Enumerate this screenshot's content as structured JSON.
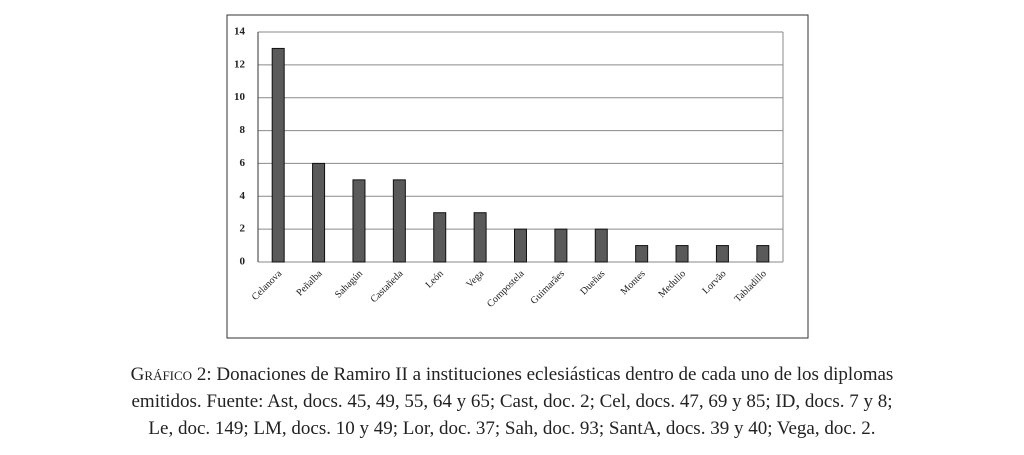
{
  "chart_data": {
    "type": "bar",
    "categories": [
      "Celanova",
      "Peñalba",
      "Sahagún",
      "Castañeda",
      "León",
      "Vega",
      "Compostela",
      "Guimarães",
      "Dueñas",
      "Montes",
      "Medulio",
      "Lorvão",
      "Tabladillo"
    ],
    "values": [
      13,
      6,
      5,
      5,
      3,
      3,
      2,
      2,
      2,
      1,
      1,
      1,
      1
    ],
    "color": "#5a5a5a",
    "ylim": [
      0,
      14
    ],
    "yticks": [
      0,
      2,
      4,
      6,
      8,
      10,
      12,
      14
    ],
    "grid": true
  },
  "caption": {
    "label": "Gráfico 2:",
    "lines": [
      " Donaciones de Ramiro II a instituciones eclesiásticas dentro de cada uno de los diplomas",
      "emitidos. Fuente: Ast, docs. 45, 49, 55, 64 y 65; Cast, doc. 2; Cel, docs. 47, 69 y 85; ID, docs. 7 y 8;",
      "Le, doc. 149; LM, docs. 10 y 49; Lor, doc. 37; Sah, doc. 93; SantA, docs. 39 y 40; Vega, doc. 2."
    ]
  }
}
